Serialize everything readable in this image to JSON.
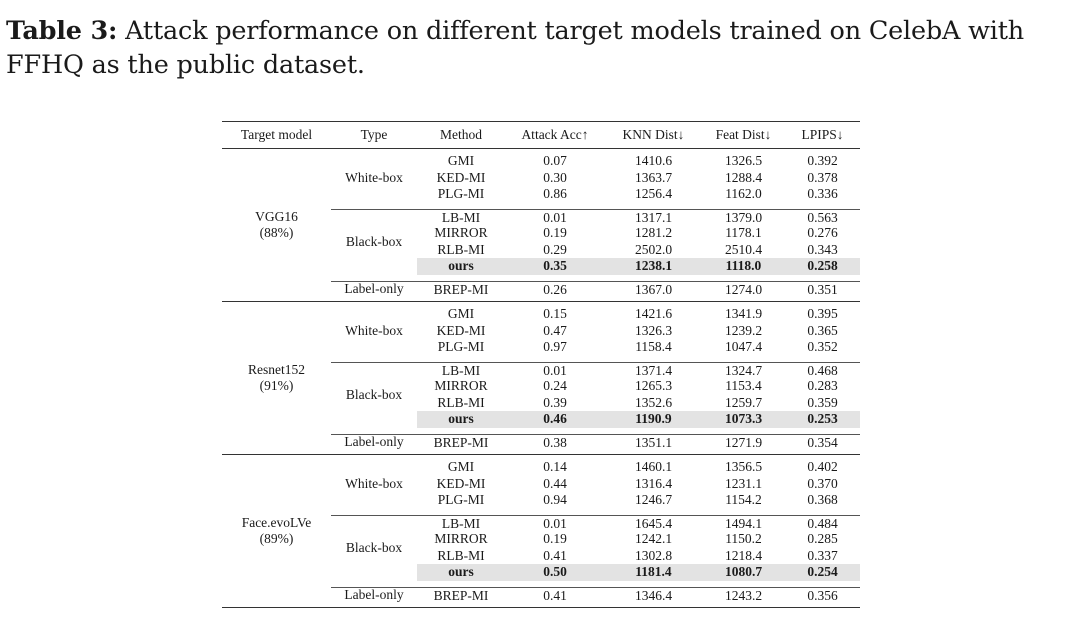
{
  "caption": {
    "label": "Table 3:",
    "text": " Attack performance on different target models trained on CelebA with FFHQ as the public dataset."
  },
  "headers": [
    "Target model",
    "Type",
    "Method",
    "Attack Acc↑",
    "KNN Dist↓",
    "Feat Dist↓",
    "LPIPS↓"
  ],
  "groups": [
    {
      "model": "VGG16",
      "acc": "(88%)",
      "types": [
        {
          "type": "White-box",
          "rows": [
            {
              "method": "GMI",
              "acc": "0.07",
              "knn": "1410.6",
              "feat": "1326.5",
              "lpips": "0.392"
            },
            {
              "method": "KED-MI",
              "acc": "0.30",
              "knn": "1363.7",
              "feat": "1288.4",
              "lpips": "0.378"
            },
            {
              "method": "PLG-MI",
              "acc": "0.86",
              "knn": "1256.4",
              "feat": "1162.0",
              "lpips": "0.336"
            }
          ]
        },
        {
          "type": "Black-box",
          "rows": [
            {
              "method": "LB-MI",
              "acc": "0.01",
              "knn": "1317.1",
              "feat": "1379.0",
              "lpips": "0.563"
            },
            {
              "method": "MIRROR",
              "acc": "0.19",
              "knn": "1281.2",
              "feat": "1178.1",
              "lpips": "0.276"
            },
            {
              "method": "RLB-MI",
              "acc": "0.29",
              "knn": "2502.0",
              "feat": "2510.4",
              "lpips": "0.343"
            },
            {
              "method": "ours",
              "acc": "0.35",
              "knn": "1238.1",
              "feat": "1118.0",
              "lpips": "0.258",
              "highlight": true
            }
          ]
        },
        {
          "type": "Label-only",
          "rows": [
            {
              "method": "BREP-MI",
              "acc": "0.26",
              "knn": "1367.0",
              "feat": "1274.0",
              "lpips": "0.351"
            }
          ]
        }
      ]
    },
    {
      "model": "Resnet152",
      "acc": "(91%)",
      "types": [
        {
          "type": "White-box",
          "rows": [
            {
              "method": "GMI",
              "acc": "0.15",
              "knn": "1421.6",
              "feat": "1341.9",
              "lpips": "0.395"
            },
            {
              "method": "KED-MI",
              "acc": "0.47",
              "knn": "1326.3",
              "feat": "1239.2",
              "lpips": "0.365"
            },
            {
              "method": "PLG-MI",
              "acc": "0.97",
              "knn": "1158.4",
              "feat": "1047.4",
              "lpips": "0.352"
            }
          ]
        },
        {
          "type": "Black-box",
          "rows": [
            {
              "method": "LB-MI",
              "acc": "0.01",
              "knn": "1371.4",
              "feat": "1324.7",
              "lpips": "0.468"
            },
            {
              "method": "MIRROR",
              "acc": "0.24",
              "knn": "1265.3",
              "feat": "1153.4",
              "lpips": "0.283"
            },
            {
              "method": "RLB-MI",
              "acc": "0.39",
              "knn": "1352.6",
              "feat": "1259.7",
              "lpips": "0.359"
            },
            {
              "method": "ours",
              "acc": "0.46",
              "knn": "1190.9",
              "feat": "1073.3",
              "lpips": "0.253",
              "highlight": true
            }
          ]
        },
        {
          "type": "Label-only",
          "rows": [
            {
              "method": "BREP-MI",
              "acc": "0.38",
              "knn": "1351.1",
              "feat": "1271.9",
              "lpips": "0.354"
            }
          ]
        }
      ]
    },
    {
      "model": "Face.evoLVe",
      "acc": "(89%)",
      "types": [
        {
          "type": "White-box",
          "rows": [
            {
              "method": "GMI",
              "acc": "0.14",
              "knn": "1460.1",
              "feat": "1356.5",
              "lpips": "0.402"
            },
            {
              "method": "KED-MI",
              "acc": "0.44",
              "knn": "1316.4",
              "feat": "1231.1",
              "lpips": "0.370"
            },
            {
              "method": "PLG-MI",
              "acc": "0.94",
              "knn": "1246.7",
              "feat": "1154.2",
              "lpips": "0.368"
            }
          ]
        },
        {
          "type": "Black-box",
          "rows": [
            {
              "method": "LB-MI",
              "acc": "0.01",
              "knn": "1645.4",
              "feat": "1494.1",
              "lpips": "0.484"
            },
            {
              "method": "MIRROR",
              "acc": "0.19",
              "knn": "1242.1",
              "feat": "1150.2",
              "lpips": "0.285"
            },
            {
              "method": "RLB-MI",
              "acc": "0.41",
              "knn": "1302.8",
              "feat": "1218.4",
              "lpips": "0.337"
            },
            {
              "method": "ours",
              "acc": "0.50",
              "knn": "1181.4",
              "feat": "1080.7",
              "lpips": "0.254",
              "highlight": true
            }
          ]
        },
        {
          "type": "Label-only",
          "rows": [
            {
              "method": "BREP-MI",
              "acc": "0.41",
              "knn": "1346.4",
              "feat": "1243.2",
              "lpips": "0.356"
            }
          ]
        }
      ]
    }
  ]
}
